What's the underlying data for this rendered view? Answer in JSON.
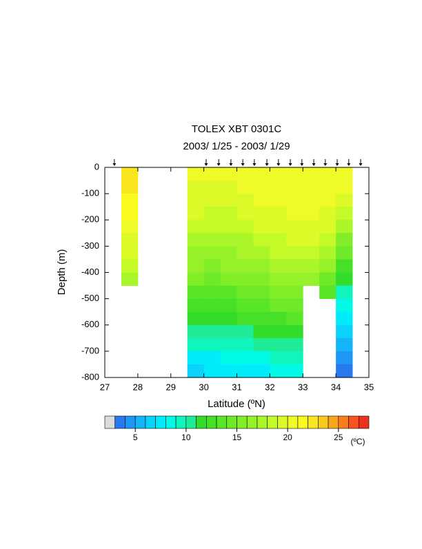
{
  "chart_data": {
    "type": "contour",
    "title": "TOLEX XBT 0301C",
    "subtitle": "2003/ 1/25 - 2003/ 1/29",
    "x_label": "Latitude (ºN)",
    "y_label": "Depth (m)",
    "xlim": [
      27,
      35
    ],
    "xticks": [
      27,
      28,
      29,
      30,
      31,
      32,
      33,
      34,
      35
    ],
    "ylim": [
      -800,
      0
    ],
    "yticks": [
      -800,
      -700,
      -600,
      -500,
      -400,
      -300,
      -200,
      -100,
      0
    ],
    "stations_x": [
      27.29,
      30.07,
      30.45,
      30.82,
      31.18,
      31.53,
      31.91,
      32.26,
      32.62,
      32.97,
      33.33,
      33.68,
      34.04,
      34.39,
      34.75
    ],
    "x": [
      27.75,
      28.25,
      28.75,
      29.25,
      29.75,
      30.25,
      30.75,
      31.25,
      31.75,
      32.25,
      32.75,
      33.25,
      33.75,
      34.25
    ],
    "y": [
      -25,
      -75,
      -125,
      -175,
      -225,
      -275,
      -325,
      -375,
      -425,
      -475,
      -525,
      -575,
      -625,
      -675,
      -725,
      -775
    ],
    "z": [
      [
        22.5,
        null,
        null,
        null,
        20,
        20,
        20,
        20.2,
        20.5,
        20.5,
        20.5,
        20.5,
        20.5,
        20.3
      ],
      [
        22.5,
        null,
        null,
        null,
        19.8,
        19.8,
        19.8,
        20,
        20.3,
        20.3,
        20.3,
        20.4,
        20.4,
        20
      ],
      [
        21.5,
        null,
        null,
        null,
        19.5,
        19.3,
        19.3,
        19.6,
        20,
        20.1,
        20.2,
        20.3,
        20.2,
        19.3
      ],
      [
        21,
        null,
        null,
        null,
        19,
        18.8,
        18.9,
        19.2,
        19.5,
        19.8,
        20.1,
        20.1,
        19.8,
        18.3
      ],
      [
        20.5,
        null,
        null,
        null,
        18.3,
        18.2,
        18.3,
        18.6,
        19,
        19.4,
        19.7,
        19.8,
        19.2,
        17
      ],
      [
        19.5,
        null,
        null,
        null,
        17.5,
        17.4,
        17.5,
        17.8,
        18.3,
        18.7,
        19.2,
        19.2,
        18.3,
        15.5
      ],
      [
        19,
        null,
        null,
        null,
        16.8,
        16.7,
        16.8,
        17.1,
        17.6,
        18,
        18.4,
        18.5,
        17.2,
        14
      ],
      [
        18.5,
        null,
        null,
        null,
        16,
        15.9,
        16,
        16.3,
        16.8,
        17.2,
        17.6,
        17.5,
        16,
        12.5
      ],
      [
        17.5,
        null,
        null,
        null,
        15,
        14.8,
        15,
        15.4,
        15.8,
        16.3,
        16.5,
        16.2,
        14.5,
        11
      ],
      [
        null,
        null,
        null,
        null,
        13.8,
        13.6,
        13.8,
        14.2,
        14.7,
        15.2,
        15.5,
        null,
        13,
        9.5
      ],
      [
        null,
        null,
        null,
        null,
        12.6,
        12.5,
        12.8,
        13.2,
        13.6,
        14,
        14.3,
        null,
        null,
        8
      ],
      [
        null,
        null,
        null,
        null,
        11.5,
        11.4,
        11.6,
        12,
        12.4,
        12.8,
        13,
        null,
        null,
        7
      ],
      [
        null,
        null,
        null,
        null,
        10.4,
        10.3,
        10.5,
        10.8,
        11.2,
        11.6,
        11.8,
        null,
        null,
        6
      ],
      [
        null,
        null,
        null,
        null,
        9,
        9,
        9.3,
        9.6,
        10,
        10.4,
        10.5,
        null,
        null,
        5.3
      ],
      [
        null,
        null,
        null,
        null,
        7.7,
        7.8,
        8,
        8.4,
        8.8,
        9.2,
        9.2,
        null,
        null,
        4.6
      ],
      [
        null,
        null,
        null,
        null,
        6.8,
        7,
        7.2,
        7.5,
        7.8,
        8.2,
        8.2,
        null,
        null,
        3.8
      ]
    ],
    "colorbar": {
      "levels": [
        3,
        4,
        5,
        6,
        7,
        8,
        9,
        10,
        11,
        12,
        13,
        14,
        15,
        16,
        17,
        18,
        19,
        20,
        21,
        22,
        23,
        24,
        25,
        26,
        27,
        28
      ],
      "colors": [
        "#2878f0",
        "#1e96f5",
        "#14b4f8",
        "#0ad2fa",
        "#00ecfa",
        "#00fae6",
        "#10f5be",
        "#20eb96",
        "#32dc28",
        "#46e028",
        "#5ae628",
        "#6eea28",
        "#82ee28",
        "#96f228",
        "#aaf628",
        "#c3fa28",
        "#dcfa28",
        "#f0fa28",
        "#fafa1e",
        "#fae61e",
        "#fac81e",
        "#faa51e",
        "#fa7d1e",
        "#f5551e",
        "#eb321e"
      ],
      "under_color": "#dcdcdc",
      "ticks": [
        5,
        10,
        15,
        20,
        25
      ],
      "unit_label": "(ºC)"
    }
  }
}
